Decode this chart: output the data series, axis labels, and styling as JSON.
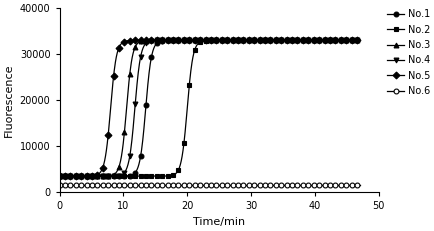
{
  "title": "",
  "xlabel": "Time/min",
  "ylabel": "Fluorescence",
  "xlim": [
    0,
    50
  ],
  "ylim": [
    0,
    40000
  ],
  "yticks": [
    0,
    10000,
    20000,
    30000,
    40000
  ],
  "xticks": [
    0,
    10,
    20,
    30,
    40,
    50
  ],
  "series": [
    {
      "label": "No.1",
      "marker": "o",
      "midpoint": 13.5,
      "k": 2.2,
      "ymax": 33000,
      "ybase": 3500,
      "ymin_flat": 1500,
      "fillstyle": "full"
    },
    {
      "label": "No.2",
      "marker": "s",
      "midpoint": 20.0,
      "k": 2.2,
      "ymax": 33000,
      "ybase": 3500,
      "ymin_flat": 1500,
      "fillstyle": "full"
    },
    {
      "label": "No.3",
      "marker": "^",
      "midpoint": 10.5,
      "k": 2.2,
      "ymax": 33000,
      "ybase": 3500,
      "ymin_flat": 1500,
      "fillstyle": "full"
    },
    {
      "label": "No.4",
      "marker": "v",
      "midpoint": 11.8,
      "k": 2.2,
      "ymax": 33000,
      "ybase": 3500,
      "ymin_flat": 1500,
      "fillstyle": "full"
    },
    {
      "label": "No.5",
      "marker": "D",
      "midpoint": 8.0,
      "k": 2.2,
      "ymax": 33000,
      "ybase": 3500,
      "ymin_flat": 1500,
      "fillstyle": "full"
    },
    {
      "label": "No.6",
      "marker": "o",
      "midpoint": 9999,
      "k": 2.2,
      "ymax": 33000,
      "ybase": 1500,
      "ymin_flat": 1500,
      "fillstyle": "none"
    }
  ],
  "line_color": "#000000",
  "marker_size": 3.5,
  "linewidth": 0.9,
  "legend_fontsize": 7,
  "axis_fontsize": 8,
  "tick_fontsize": 7,
  "background_color": "#ffffff",
  "marker_every_pts": 18
}
